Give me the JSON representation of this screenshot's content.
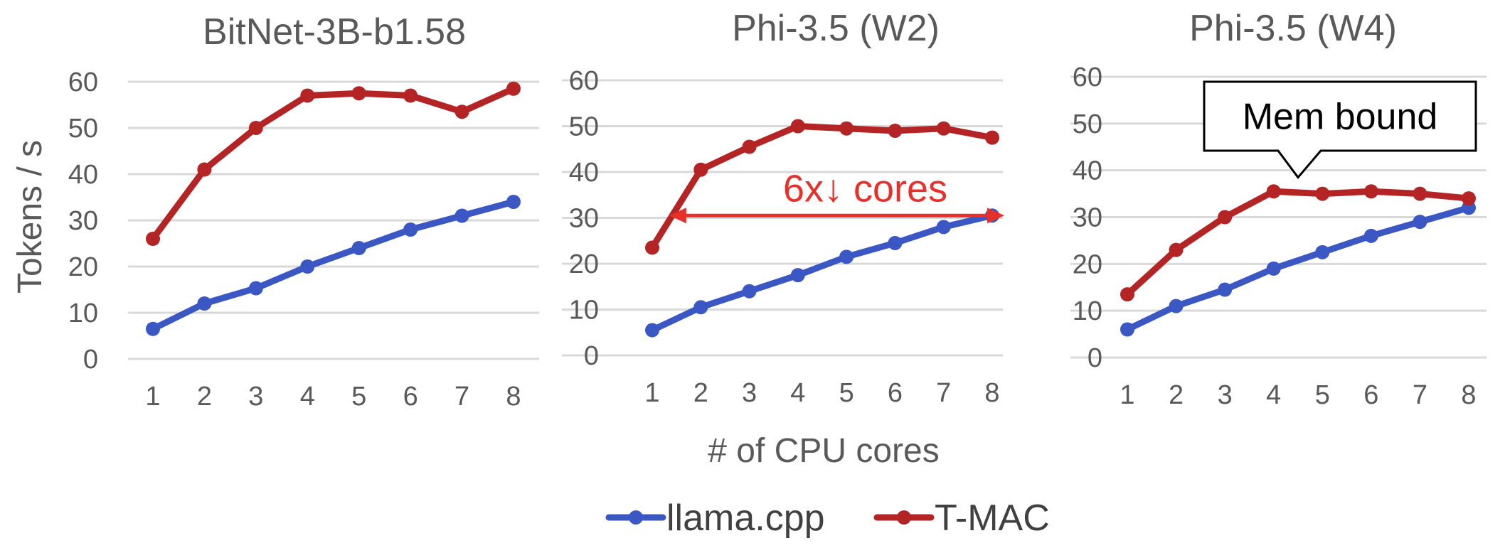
{
  "colors": {
    "llama": "#3a57c4",
    "tmac": "#b52424",
    "grid": "#d9d9d9",
    "annotation": "#e8302a"
  },
  "axes": {
    "ylabel": "Tokens / s",
    "xlabel": "# of CPU cores"
  },
  "legend": [
    {
      "name": "llama.cpp",
      "color": "#3a57c4"
    },
    {
      "name": "T-MAC",
      "color": "#b52424"
    }
  ],
  "chart_data": [
    {
      "type": "line",
      "title": "BitNet-3B-b1.58",
      "x": [
        1,
        2,
        3,
        4,
        5,
        6,
        7,
        8
      ],
      "ylim": [
        0,
        60
      ],
      "yticks": [
        0,
        10,
        20,
        30,
        40,
        50,
        60
      ],
      "series": [
        {
          "name": "llama.cpp",
          "values": [
            6.5,
            12,
            15.3,
            20,
            24,
            28,
            31,
            34
          ]
        },
        {
          "name": "T-MAC",
          "values": [
            26,
            41,
            50,
            57,
            57.5,
            57,
            53.5,
            58.5
          ]
        }
      ]
    },
    {
      "type": "line",
      "title": "Phi-3.5 (W2)",
      "x": [
        1,
        2,
        3,
        4,
        5,
        6,
        7,
        8
      ],
      "ylim": [
        0,
        60
      ],
      "yticks": [
        0,
        10,
        20,
        30,
        40,
        50,
        60
      ],
      "series": [
        {
          "name": "llama.cpp",
          "values": [
            5.5,
            10.5,
            14,
            17.5,
            21.5,
            24.5,
            28,
            30.5
          ]
        },
        {
          "name": "T-MAC",
          "values": [
            23.5,
            40.5,
            45.5,
            50,
            49.5,
            49,
            49.5,
            47.5
          ]
        }
      ],
      "annotation": {
        "text": "6x↓ cores",
        "from_x": 1.35,
        "to_x": 8.25,
        "y": 30.5
      }
    },
    {
      "type": "line",
      "title": "Phi-3.5 (W4)",
      "x": [
        1,
        2,
        3,
        4,
        5,
        6,
        7,
        8
      ],
      "ylim": [
        0,
        60
      ],
      "yticks": [
        0,
        10,
        20,
        30,
        40,
        50,
        60
      ],
      "series": [
        {
          "name": "llama.cpp",
          "values": [
            6,
            11,
            14.5,
            19,
            22.5,
            26,
            29,
            32
          ]
        },
        {
          "name": "T-MAC",
          "values": [
            13.5,
            23,
            30,
            35.5,
            35,
            35.5,
            35,
            34
          ]
        }
      ],
      "callout": {
        "text": "Mem bound",
        "pointer_x": 4.5,
        "pointer_y": 38.5
      }
    }
  ]
}
